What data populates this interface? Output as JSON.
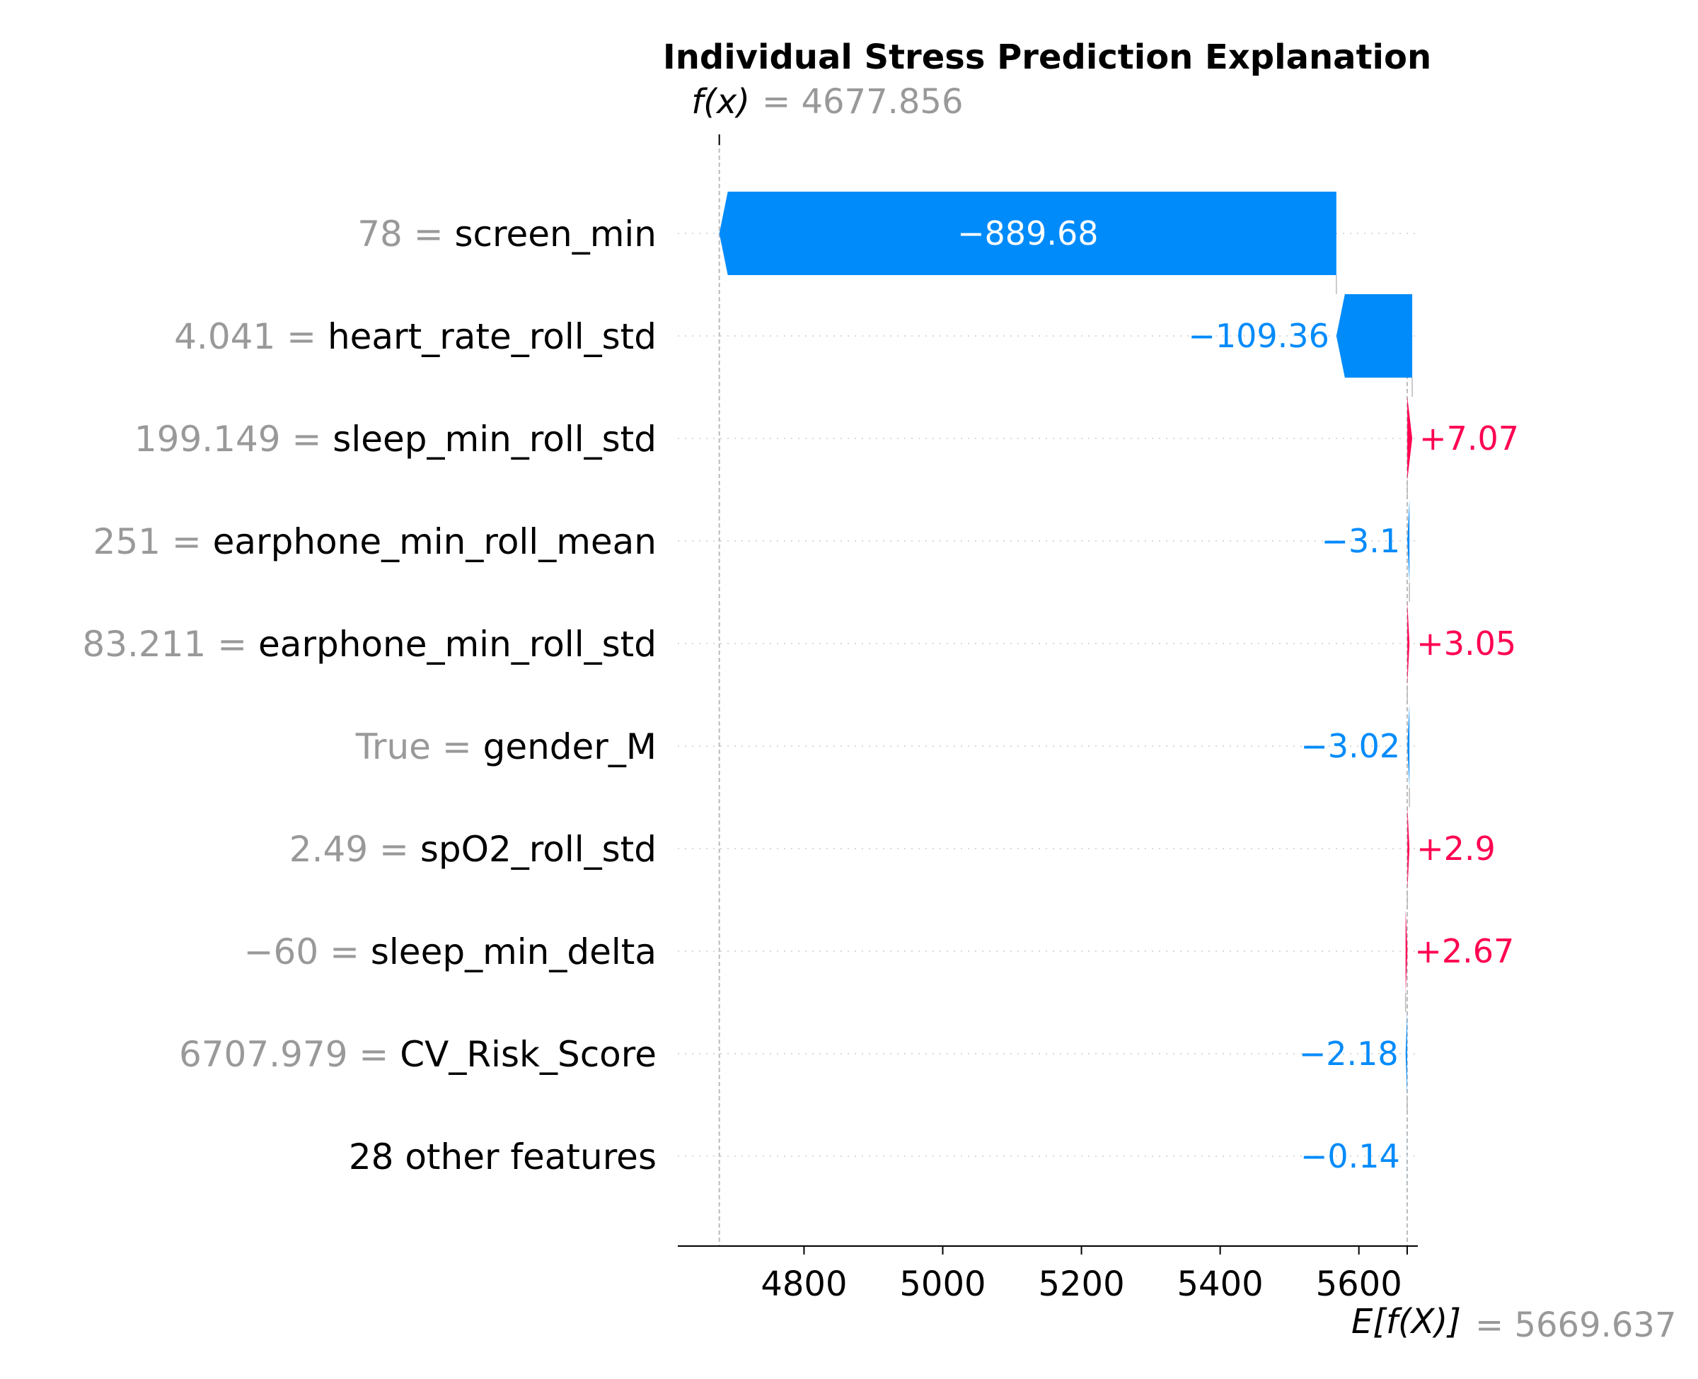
{
  "chart_data": {
    "type": "waterfall",
    "title": "Individual Stress Prediction Explanation",
    "fx": {
      "symbol": "f(x)",
      "value_text": "= 4677.856",
      "value": 4677.856
    },
    "base": {
      "symbol": "E[f(X)]",
      "value_text": "= 5669.637",
      "value": 5669.637
    },
    "features": [
      {
        "value_text": "78",
        "name": "screen_min",
        "contribution": -889.68,
        "label": "−889.68"
      },
      {
        "value_text": "4.041",
        "name": "heart_rate_roll_std",
        "contribution": -109.36,
        "label": "−109.36"
      },
      {
        "value_text": "199.149",
        "name": "sleep_min_roll_std",
        "contribution": 7.07,
        "label": "+7.07"
      },
      {
        "value_text": "251",
        "name": "earphone_min_roll_mean",
        "contribution": -3.1,
        "label": "−3.1"
      },
      {
        "value_text": "83.211",
        "name": "earphone_min_roll_std",
        "contribution": 3.05,
        "label": "+3.05"
      },
      {
        "value_text": "True",
        "name": "gender_M",
        "contribution": -3.02,
        "label": "−3.02"
      },
      {
        "value_text": "2.49",
        "name": "spO2_roll_std",
        "contribution": 2.9,
        "label": "+2.9"
      },
      {
        "value_text": "−60",
        "name": "sleep_min_delta",
        "contribution": 2.67,
        "label": "+2.67"
      },
      {
        "value_text": "6707.979",
        "name": "CV_Risk_Score",
        "contribution": -2.18,
        "label": "−2.18"
      },
      {
        "value_text": "",
        "name": "28 other features",
        "contribution": -0.14,
        "label": "−0.14"
      }
    ],
    "x_ticks": [
      4800,
      5000,
      5200,
      5400,
      5600
    ],
    "xlim": [
      4618,
      5685
    ],
    "colors": {
      "negative": "#008bfb",
      "positive": "#ff0051"
    }
  }
}
